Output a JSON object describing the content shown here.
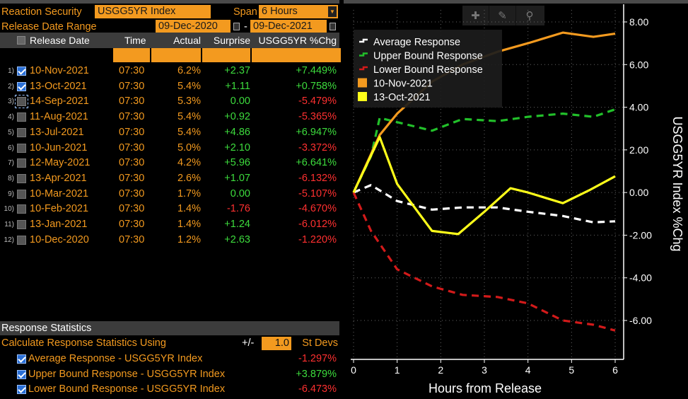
{
  "header": {
    "reaction_security_label": "Reaction Security",
    "reaction_security_value": "USGG5YR Index",
    "span_label": "Span",
    "span_value": "6 Hours",
    "release_range_label": "Release Date Range",
    "range_start": "09-Dec-2020",
    "range_sep": "-",
    "range_end": "09-Dec-2021"
  },
  "table": {
    "columns": [
      "Release Date",
      "Time",
      "Actual",
      "Surprise",
      "USGG5YR %Chg"
    ],
    "rows": [
      {
        "idx": "1)",
        "checked": true,
        "date": "10-Nov-2021",
        "time": "07:30",
        "actual": "6.2%",
        "surprise": "+2.37",
        "chg": "+7.449%"
      },
      {
        "idx": "2)",
        "checked": true,
        "date": "13-Oct-2021",
        "time": "07:30",
        "actual": "5.4%",
        "surprise": "+1.11",
        "chg": "+0.758%"
      },
      {
        "idx": "3)",
        "checked": false,
        "date": "14-Sep-2021",
        "time": "07:30",
        "actual": "5.3%",
        "surprise": "0.00",
        "chg": "-5.479%"
      },
      {
        "idx": "4)",
        "checked": false,
        "date": "11-Aug-2021",
        "time": "07:30",
        "actual": "5.4%",
        "surprise": "+0.92",
        "chg": "-5.365%"
      },
      {
        "idx": "5)",
        "checked": false,
        "date": "13-Jul-2021",
        "time": "07:30",
        "actual": "5.4%",
        "surprise": "+4.86",
        "chg": "+6.947%"
      },
      {
        "idx": "6)",
        "checked": false,
        "date": "10-Jun-2021",
        "time": "07:30",
        "actual": "5.0%",
        "surprise": "+2.10",
        "chg": "-3.372%"
      },
      {
        "idx": "7)",
        "checked": false,
        "date": "12-May-2021",
        "time": "07:30",
        "actual": "4.2%",
        "surprise": "+5.96",
        "chg": "+6.641%"
      },
      {
        "idx": "8)",
        "checked": false,
        "date": "13-Apr-2021",
        "time": "07:30",
        "actual": "2.6%",
        "surprise": "+1.07",
        "chg": "-6.132%"
      },
      {
        "idx": "9)",
        "checked": false,
        "date": "10-Mar-2021",
        "time": "07:30",
        "actual": "1.7%",
        "surprise": "0.00",
        "chg": "-5.107%"
      },
      {
        "idx": "10)",
        "checked": false,
        "date": "10-Feb-2021",
        "time": "07:30",
        "actual": "1.4%",
        "surprise": "-1.76",
        "chg": "-4.670%"
      },
      {
        "idx": "11)",
        "checked": false,
        "date": "13-Jan-2021",
        "time": "07:30",
        "actual": "1.4%",
        "surprise": "+1.24",
        "chg": "-6.012%"
      },
      {
        "idx": "12)",
        "checked": false,
        "date": "10-Dec-2020",
        "time": "07:30",
        "actual": "1.2%",
        "surprise": "+2.63",
        "chg": "-1.220%"
      }
    ]
  },
  "stats": {
    "title": "Response Statistics",
    "calc_label": "Calculate Response Statistics Using",
    "pm": "+/-",
    "stdev_value": "1.0",
    "stdev_label": "St Devs",
    "items": [
      {
        "label": "Average Response - USGG5YR Index",
        "value": "-1.297%",
        "sign": "neg"
      },
      {
        "label": "Upper Bound Response - USGG5YR Index",
        "value": "+3.879%",
        "sign": "pos"
      },
      {
        "label": "Lower Bound Response - USGG5YR Index",
        "value": "-6.473%",
        "sign": "neg"
      }
    ]
  },
  "toolbar": {
    "icons": [
      "crosshair-icon",
      "pencil-icon",
      "magnifier-icon"
    ]
  },
  "chart_data": {
    "type": "line",
    "xlabel": "Hours from Release",
    "ylabel": "USGG5YR Index %Chg",
    "xlim": [
      0,
      6
    ],
    "ylim": [
      -7.5,
      8.5
    ],
    "x_ticks": [
      0,
      1,
      2,
      3,
      4,
      5,
      6
    ],
    "y_ticks": [
      "8.00",
      "6.00",
      "4.00",
      "2.00",
      "0.00",
      "-2.00",
      "-4.00",
      "-6.00"
    ],
    "y_tick_values": [
      8,
      6,
      4,
      2,
      0,
      -2,
      -4,
      -6
    ],
    "grid": true,
    "legend": "top-left",
    "series": [
      {
        "name": "Average Response",
        "color": "#ffffff",
        "dash": true,
        "x": [
          0,
          0.4,
          1,
          1.8,
          2.5,
          3.3,
          4,
          4.8,
          5.5,
          6
        ],
        "y": [
          0,
          0.35,
          -0.4,
          -0.8,
          -0.7,
          -0.7,
          -0.9,
          -1.1,
          -1.4,
          -1.35
        ]
      },
      {
        "name": "Upper Bound Response",
        "color": "#22c02a",
        "dash": true,
        "x": [
          0,
          0.4,
          0.6,
          1,
          1.8,
          2.5,
          3.3,
          4,
          4.8,
          5.5,
          6
        ],
        "y": [
          0,
          1.7,
          3.5,
          3.3,
          2.9,
          3.45,
          3.35,
          3.55,
          3.7,
          3.55,
          3.9
        ]
      },
      {
        "name": "Lower Bound Response",
        "color": "#d21a1a",
        "dash": true,
        "x": [
          0,
          0.4,
          1,
          1.8,
          2.5,
          3.3,
          4,
          4.8,
          5.5,
          6
        ],
        "y": [
          0,
          -1.8,
          -3.6,
          -4.4,
          -4.8,
          -4.9,
          -5.2,
          -6.0,
          -6.2,
          -6.47
        ]
      },
      {
        "name": "10-Nov-2021",
        "color": "#f39a1f",
        "dash": false,
        "x": [
          0,
          0.6,
          1,
          1.8,
          2.5,
          3.3,
          4,
          4.8,
          5.5,
          6
        ],
        "y": [
          0,
          2.7,
          3.7,
          5.2,
          6.0,
          6.6,
          7.0,
          7.5,
          7.3,
          7.45
        ]
      },
      {
        "name": "13-Oct-2021",
        "color": "#ffff1a",
        "dash": false,
        "x": [
          0,
          0.6,
          1,
          1.8,
          2.4,
          3.0,
          3.6,
          4.0,
          4.8,
          5.4,
          6
        ],
        "y": [
          0,
          2.6,
          0.4,
          -1.8,
          -1.95,
          -0.9,
          0.2,
          0.0,
          -0.5,
          0.1,
          0.76
        ]
      }
    ]
  }
}
